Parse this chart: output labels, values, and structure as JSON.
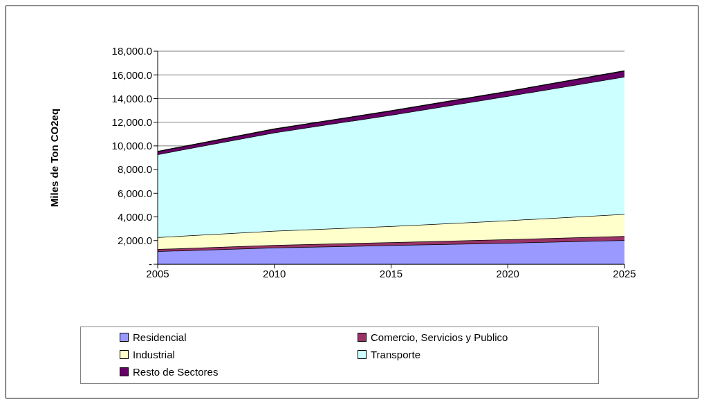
{
  "chart_data": {
    "type": "area",
    "stacked": true,
    "ylabel": "Miles de Ton CO2eq",
    "x": [
      2005,
      2010,
      2015,
      2020,
      2025
    ],
    "xlim": [
      2005,
      2025
    ],
    "xticks": [
      2005,
      2010,
      2015,
      2020,
      2025
    ],
    "ylim": [
      0,
      18000
    ],
    "yticks": [
      {
        "value": 0,
        "label": "-"
      },
      {
        "value": 2000,
        "label": "2,000.0"
      },
      {
        "value": 4000,
        "label": "4,000.0"
      },
      {
        "value": 6000,
        "label": "6,000.0"
      },
      {
        "value": 8000,
        "label": "8,000.0"
      },
      {
        "value": 10000,
        "label": "10,000.0"
      },
      {
        "value": 12000,
        "label": "12,000.0"
      },
      {
        "value": 14000,
        "label": "14,000.0"
      },
      {
        "value": 16000,
        "label": "16,000.0"
      },
      {
        "value": 18000,
        "label": "18,000.0"
      }
    ],
    "grid": "y",
    "legend": "bottom",
    "series": [
      {
        "name": "Residencial",
        "color": "#9999ff",
        "values": [
          1100,
          1400,
          1600,
          1800,
          2030
        ]
      },
      {
        "name": "Comercio, Servicios y Publico",
        "color": "#993366",
        "values": [
          180,
          220,
          260,
          300,
          350
        ]
      },
      {
        "name": "Industrial",
        "color": "#ffffcc",
        "values": [
          1000,
          1200,
          1350,
          1600,
          1860
        ]
      },
      {
        "name": "Transporte",
        "color": "#ccffff",
        "values": [
          7000,
          8300,
          9400,
          10500,
          11600
        ]
      },
      {
        "name": "Resto de Sectores",
        "color": "#660066",
        "values": [
          250,
          300,
          350,
          400,
          500
        ]
      }
    ]
  }
}
